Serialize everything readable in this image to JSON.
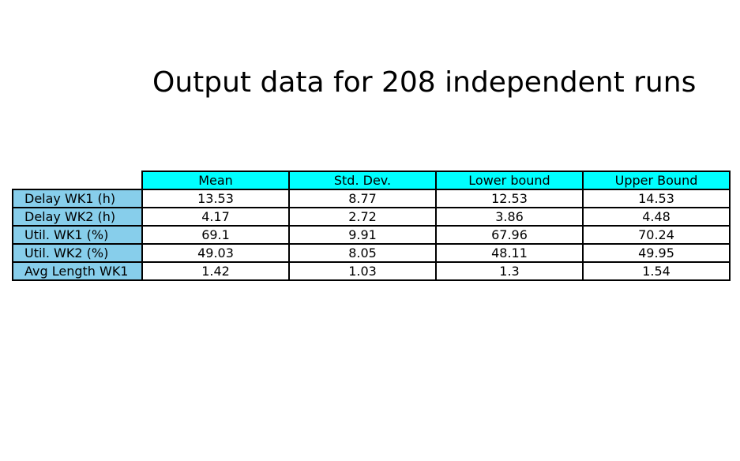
{
  "chart_data": {
    "type": "table",
    "title": "Output data for 208 independent runs",
    "columns": [
      "Mean",
      "Std. Dev.",
      "Lower bound",
      "Upper Bound"
    ],
    "rows": [
      {
        "label": "Delay WK1 (h)",
        "values": [
          "13.53",
          "8.77",
          "12.53",
          "14.53"
        ]
      },
      {
        "label": "Delay WK2 (h)",
        "values": [
          "4.17",
          "2.72",
          "3.86",
          "4.48"
        ]
      },
      {
        "label": "Util. WK1 (%)",
        "values": [
          "69.1",
          "9.91",
          "67.96",
          "70.24"
        ]
      },
      {
        "label": "Util. WK2 (%)",
        "values": [
          "49.03",
          "8.05",
          "48.11",
          "49.95"
        ]
      },
      {
        "label": "Avg Length WK1",
        "values": [
          "1.42",
          "1.03",
          "1.3",
          "1.54"
        ]
      }
    ],
    "colors": {
      "column_header": "#00ffff",
      "row_header": "#87ceeb",
      "cell": "#ffffff"
    }
  }
}
